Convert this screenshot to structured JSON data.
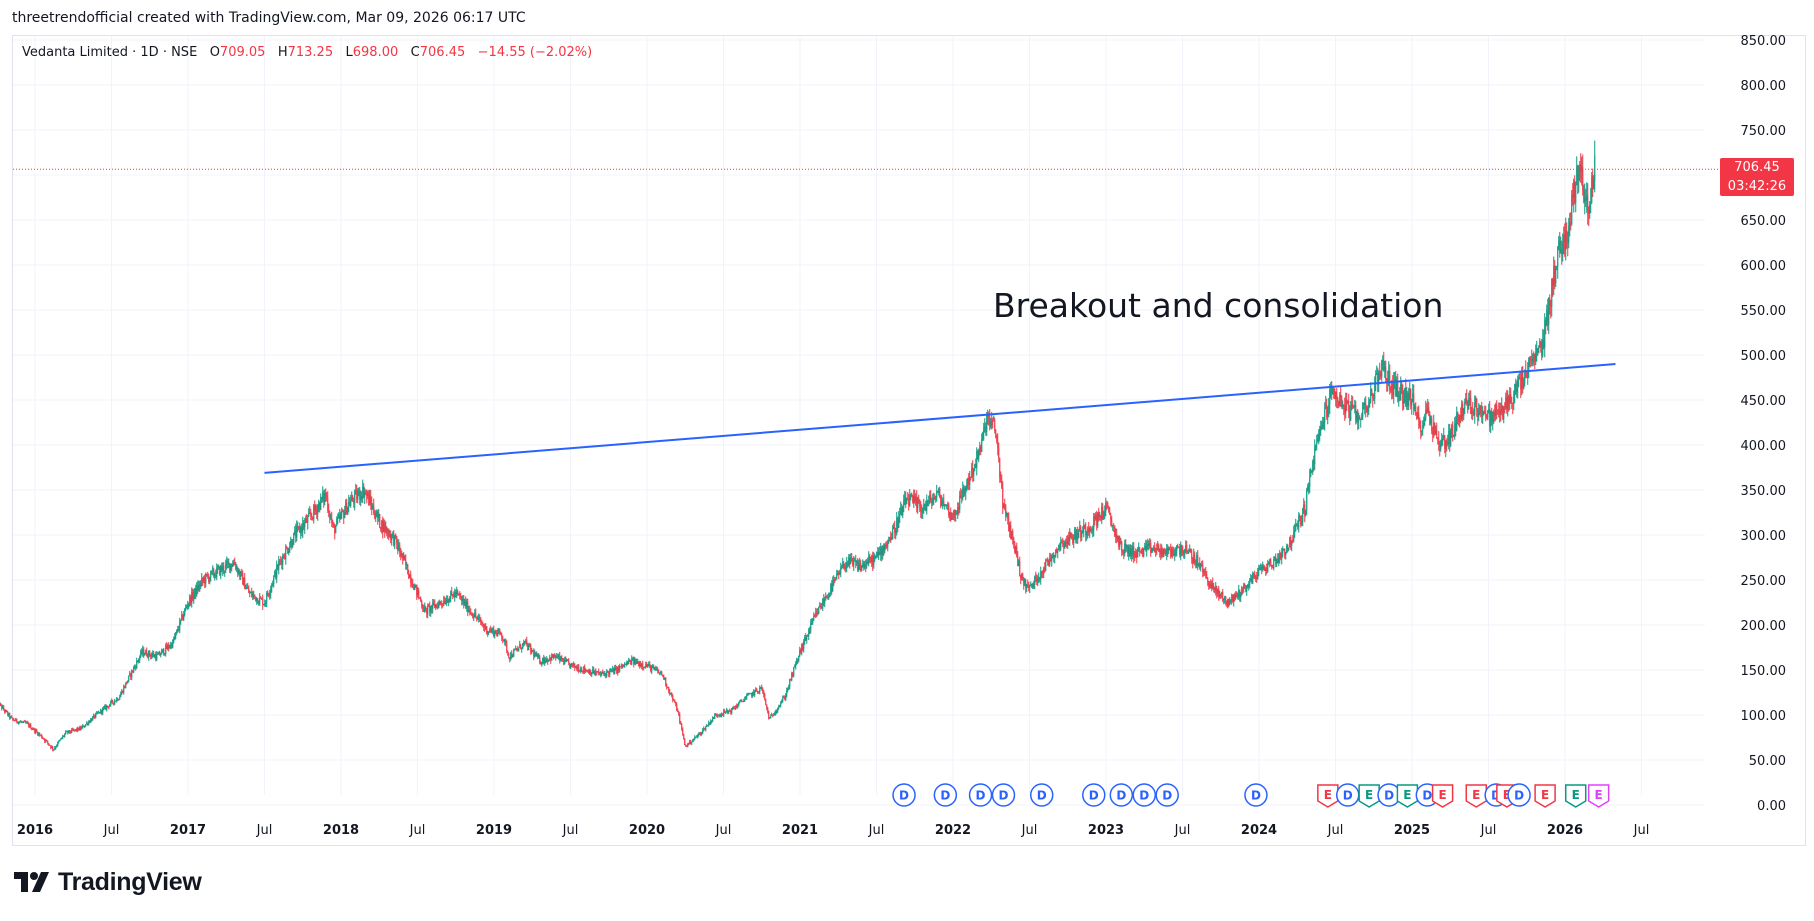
{
  "caption": "threetrendofficial created with TradingView.com, Mar 09, 2026 06:17 UTC",
  "legend": {
    "symbol": "Vedanta Limited · 1D · NSE",
    "o_label": "O",
    "o_value": "709.05",
    "h_label": "H",
    "h_value": "713.25",
    "l_label": "L",
    "l_value": "698.00",
    "c_label": "C",
    "c_value": "706.45",
    "change": "−14.55 (−2.02%)"
  },
  "last_price": {
    "price": "706.45",
    "countdown": "03:42:26"
  },
  "annotation": "Breakout and consolidation",
  "brand": "TradingView",
  "colors": {
    "up": "#089981",
    "down": "#f23645",
    "trendline": "#2962ff",
    "dividend": "#2962ff",
    "earnings_beat": "#089981",
    "earnings_miss": "#f23645",
    "split": "#e040fb"
  },
  "chart_data": {
    "type": "candlestick",
    "title": "Vedanta Limited · 1D · NSE",
    "ylim": [
      0,
      850
    ],
    "yticks": [
      "850.00",
      "800.00",
      "750.00",
      "700.00",
      "650.00",
      "600.00",
      "550.00",
      "500.00",
      "450.00",
      "400.00",
      "350.00",
      "300.00",
      "250.00",
      "200.00",
      "150.00",
      "100.00",
      "50.00",
      "0.00"
    ],
    "xticks": [
      {
        "label": "2016",
        "t": 2016.0,
        "year": true
      },
      {
        "label": "Jul",
        "t": 2016.5,
        "year": false
      },
      {
        "label": "2017",
        "t": 2017.0,
        "year": true
      },
      {
        "label": "Jul",
        "t": 2017.5,
        "year": false
      },
      {
        "label": "2018",
        "t": 2018.0,
        "year": true
      },
      {
        "label": "Jul",
        "t": 2018.5,
        "year": false
      },
      {
        "label": "2019",
        "t": 2019.0,
        "year": true
      },
      {
        "label": "Jul",
        "t": 2019.5,
        "year": false
      },
      {
        "label": "2020",
        "t": 2020.0,
        "year": true
      },
      {
        "label": "Jul",
        "t": 2020.5,
        "year": false
      },
      {
        "label": "2021",
        "t": 2021.0,
        "year": true
      },
      {
        "label": "Jul",
        "t": 2021.5,
        "year": false
      },
      {
        "label": "2022",
        "t": 2022.0,
        "year": true
      },
      {
        "label": "Jul",
        "t": 2022.5,
        "year": false
      },
      {
        "label": "2023",
        "t": 2023.0,
        "year": true
      },
      {
        "label": "Jul",
        "t": 2023.5,
        "year": false
      },
      {
        "label": "2024",
        "t": 2024.0,
        "year": true
      },
      {
        "label": "Jul",
        "t": 2024.5,
        "year": false
      },
      {
        "label": "2025",
        "t": 2025.0,
        "year": true
      },
      {
        "label": "Jul",
        "t": 2025.5,
        "year": false
      },
      {
        "label": "2026",
        "t": 2026.0,
        "year": true
      },
      {
        "label": "Jul",
        "t": 2026.5,
        "year": false
      }
    ],
    "price_path": [
      [
        2015.75,
        115
      ],
      [
        2015.85,
        95
      ],
      [
        2015.95,
        90
      ],
      [
        2016.05,
        75
      ],
      [
        2016.12,
        62
      ],
      [
        2016.2,
        80
      ],
      [
        2016.3,
        85
      ],
      [
        2016.4,
        100
      ],
      [
        2016.55,
        120
      ],
      [
        2016.7,
        170
      ],
      [
        2016.8,
        165
      ],
      [
        2016.9,
        180
      ],
      [
        2017.0,
        225
      ],
      [
        2017.1,
        250
      ],
      [
        2017.2,
        260
      ],
      [
        2017.3,
        270
      ],
      [
        2017.4,
        235
      ],
      [
        2017.5,
        225
      ],
      [
        2017.6,
        270
      ],
      [
        2017.7,
        300
      ],
      [
        2017.8,
        320
      ],
      [
        2017.9,
        345
      ],
      [
        2017.95,
        305
      ],
      [
        2018.05,
        335
      ],
      [
        2018.15,
        350
      ],
      [
        2018.25,
        315
      ],
      [
        2018.35,
        295
      ],
      [
        2018.45,
        255
      ],
      [
        2018.55,
        215
      ],
      [
        2018.65,
        225
      ],
      [
        2018.75,
        235
      ],
      [
        2018.85,
        215
      ],
      [
        2018.95,
        195
      ],
      [
        2019.05,
        190
      ],
      [
        2019.1,
        165
      ],
      [
        2019.2,
        180
      ],
      [
        2019.3,
        160
      ],
      [
        2019.4,
        165
      ],
      [
        2019.5,
        155
      ],
      [
        2019.6,
        150
      ],
      [
        2019.7,
        145
      ],
      [
        2019.8,
        150
      ],
      [
        2019.9,
        160
      ],
      [
        2020.0,
        155
      ],
      [
        2020.1,
        145
      ],
      [
        2020.2,
        105
      ],
      [
        2020.25,
        65
      ],
      [
        2020.35,
        80
      ],
      [
        2020.45,
        100
      ],
      [
        2020.55,
        105
      ],
      [
        2020.65,
        120
      ],
      [
        2020.75,
        130
      ],
      [
        2020.8,
        95
      ],
      [
        2020.9,
        120
      ],
      [
        2021.0,
        170
      ],
      [
        2021.1,
        210
      ],
      [
        2021.2,
        240
      ],
      [
        2021.3,
        270
      ],
      [
        2021.4,
        265
      ],
      [
        2021.5,
        275
      ],
      [
        2021.6,
        300
      ],
      [
        2021.7,
        340
      ],
      [
        2021.8,
        330
      ],
      [
        2021.9,
        345
      ],
      [
        2022.0,
        320
      ],
      [
        2022.1,
        360
      ],
      [
        2022.18,
        395
      ],
      [
        2022.22,
        430
      ],
      [
        2022.28,
        415
      ],
      [
        2022.33,
        330
      ],
      [
        2022.4,
        290
      ],
      [
        2022.45,
        250
      ],
      [
        2022.5,
        240
      ],
      [
        2022.6,
        265
      ],
      [
        2022.7,
        290
      ],
      [
        2022.8,
        300
      ],
      [
        2022.9,
        310
      ],
      [
        2023.0,
        330
      ],
      [
        2023.1,
        285
      ],
      [
        2023.2,
        280
      ],
      [
        2023.3,
        285
      ],
      [
        2023.4,
        280
      ],
      [
        2023.5,
        285
      ],
      [
        2023.6,
        270
      ],
      [
        2023.7,
        240
      ],
      [
        2023.8,
        225
      ],
      [
        2023.9,
        240
      ],
      [
        2024.0,
        260
      ],
      [
        2024.1,
        270
      ],
      [
        2024.2,
        290
      ],
      [
        2024.3,
        330
      ],
      [
        2024.35,
        380
      ],
      [
        2024.42,
        430
      ],
      [
        2024.48,
        460
      ],
      [
        2024.55,
        445
      ],
      [
        2024.65,
        430
      ],
      [
        2024.75,
        460
      ],
      [
        2024.8,
        490
      ],
      [
        2024.85,
        470
      ],
      [
        2024.95,
        455
      ],
      [
        2025.0,
        450
      ],
      [
        2025.05,
        420
      ],
      [
        2025.1,
        440
      ],
      [
        2025.18,
        400
      ],
      [
        2025.25,
        410
      ],
      [
        2025.3,
        430
      ],
      [
        2025.35,
        445
      ],
      [
        2025.45,
        440
      ],
      [
        2025.5,
        430
      ],
      [
        2025.6,
        440
      ],
      [
        2025.7,
        465
      ],
      [
        2025.78,
        490
      ],
      [
        2025.85,
        510
      ],
      [
        2025.9,
        560
      ],
      [
        2025.95,
        610
      ],
      [
        2026.02,
        640
      ],
      [
        2026.07,
        690
      ],
      [
        2026.1,
        720
      ],
      [
        2026.14,
        660
      ],
      [
        2026.2,
        710
      ]
    ],
    "trendline": {
      "start": [
        2017.5,
        369
      ],
      "end": [
        2026.33,
        490
      ]
    },
    "last_close": 706.45,
    "events": [
      {
        "t": 2021.68,
        "type": "D"
      },
      {
        "t": 2021.95,
        "type": "D"
      },
      {
        "t": 2022.18,
        "type": "D"
      },
      {
        "t": 2022.33,
        "type": "D"
      },
      {
        "t": 2022.58,
        "type": "D"
      },
      {
        "t": 2022.92,
        "type": "D"
      },
      {
        "t": 2023.1,
        "type": "D"
      },
      {
        "t": 2023.25,
        "type": "D"
      },
      {
        "t": 2023.4,
        "type": "D"
      },
      {
        "t": 2023.98,
        "type": "D"
      },
      {
        "t": 2024.45,
        "type": "E",
        "result": "miss"
      },
      {
        "t": 2024.58,
        "type": "D"
      },
      {
        "t": 2024.72,
        "type": "E",
        "result": "beat"
      },
      {
        "t": 2024.85,
        "type": "D"
      },
      {
        "t": 2024.97,
        "type": "E",
        "result": "beat"
      },
      {
        "t": 2025.1,
        "type": "D"
      },
      {
        "t": 2025.2,
        "type": "E",
        "result": "miss"
      },
      {
        "t": 2025.42,
        "type": "E",
        "result": "miss"
      },
      {
        "t": 2025.55,
        "type": "D"
      },
      {
        "t": 2025.62,
        "type": "E",
        "result": "miss"
      },
      {
        "t": 2025.7,
        "type": "D"
      },
      {
        "t": 2025.87,
        "type": "E",
        "result": "miss"
      },
      {
        "t": 2026.07,
        "type": "E",
        "result": "beat"
      },
      {
        "t": 2026.22,
        "type": "E",
        "result": "split"
      }
    ]
  }
}
